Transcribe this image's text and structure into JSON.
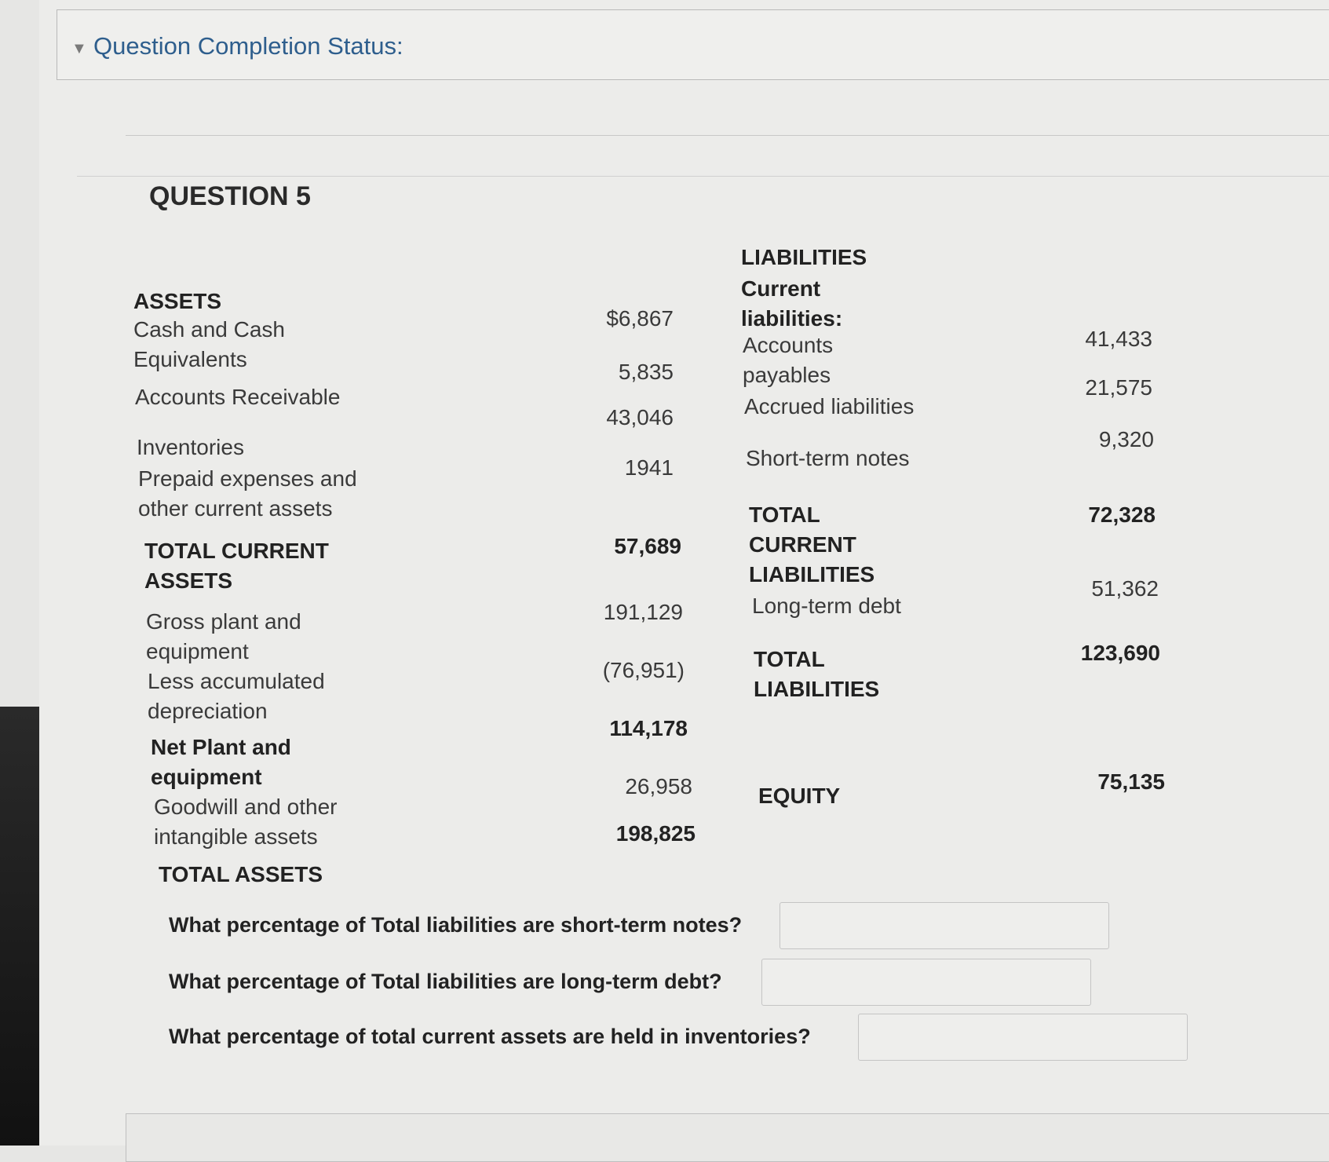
{
  "status": {
    "title": "Question Completion Status:"
  },
  "question": {
    "title": "QUESTION 5"
  },
  "assets": {
    "heading": "ASSETS",
    "rows": [
      {
        "label": "Cash and Cash Equivalents",
        "value": "$6,867"
      },
      {
        "label": "Accounts Receivable",
        "value": "5,835"
      },
      {
        "label": "Inventories",
        "value": "43,046"
      },
      {
        "label": "Prepaid expenses and other current assets",
        "value": "1941"
      },
      {
        "label": "TOTAL CURRENT ASSETS",
        "value": "57,689"
      },
      {
        "label": "Gross plant and equipment",
        "value": "191,129"
      },
      {
        "label": "Less accumulated depreciation",
        "value": "(76,951)"
      },
      {
        "label": "Net Plant and equipment",
        "value": "114,178"
      },
      {
        "label": "Goodwill and other intangible assets",
        "value": "26,958"
      },
      {
        "label": "TOTAL ASSETS",
        "value": "198,825"
      }
    ]
  },
  "liabilities": {
    "heading": "LIABILITIES",
    "subheading": "Current liabilities:",
    "rows": [
      {
        "label": "Accounts payables",
        "value": "41,433"
      },
      {
        "label": "Accrued liabilities",
        "value": "21,575"
      },
      {
        "label": "Short-term notes",
        "value": "9,320"
      },
      {
        "label": "TOTAL CURRENT LIABILITIES",
        "value": "72,328"
      },
      {
        "label": "Long-term debt",
        "value": "51,362"
      },
      {
        "label": "TOTAL LIABILITIES",
        "value": "123,690"
      },
      {
        "label": "EQUITY",
        "value": "75,135"
      }
    ]
  },
  "questions": [
    {
      "text": "What percentage of Total liabilities are short-term notes?",
      "answer": ""
    },
    {
      "text": "What percentage of Total liabilities are long-term debt?",
      "answer": ""
    },
    {
      "text": "What percentage of total current assets are held in inventories?",
      "answer": ""
    }
  ]
}
